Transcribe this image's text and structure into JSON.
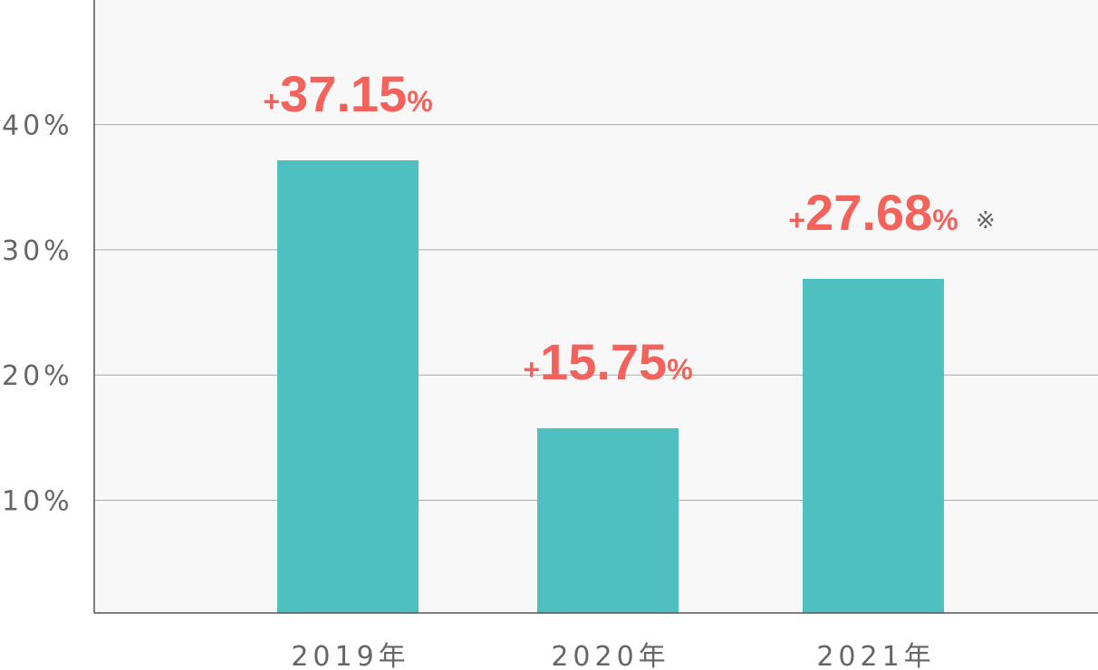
{
  "chart_data": {
    "type": "bar",
    "categories": [
      "2019年",
      "2020年",
      "2021年"
    ],
    "values": [
      37.15,
      15.75,
      27.68
    ],
    "data_labels": [
      {
        "plus": "+",
        "value": "37.15",
        "unit": "%",
        "note": ""
      },
      {
        "plus": "+",
        "value": "15.75",
        "unit": "%",
        "note": ""
      },
      {
        "plus": "+",
        "value": "27.68",
        "unit": "%",
        "note": "※"
      }
    ],
    "y_ticks": [
      {
        "value": 10,
        "label": "10%"
      },
      {
        "value": 20,
        "label": "20%"
      },
      {
        "value": 30,
        "label": "30%"
      },
      {
        "value": 40,
        "label": "40%"
      }
    ],
    "title": "",
    "xlabel": "",
    "ylabel": "",
    "ylim": [
      1,
      50
    ],
    "grid": true,
    "colors": {
      "bar": "#4DC0BF",
      "label": "#F4625C",
      "plot_bg": "#F8F8F8",
      "grid": "#AAAAAA",
      "axis": "#555555",
      "text": "#666666"
    }
  }
}
